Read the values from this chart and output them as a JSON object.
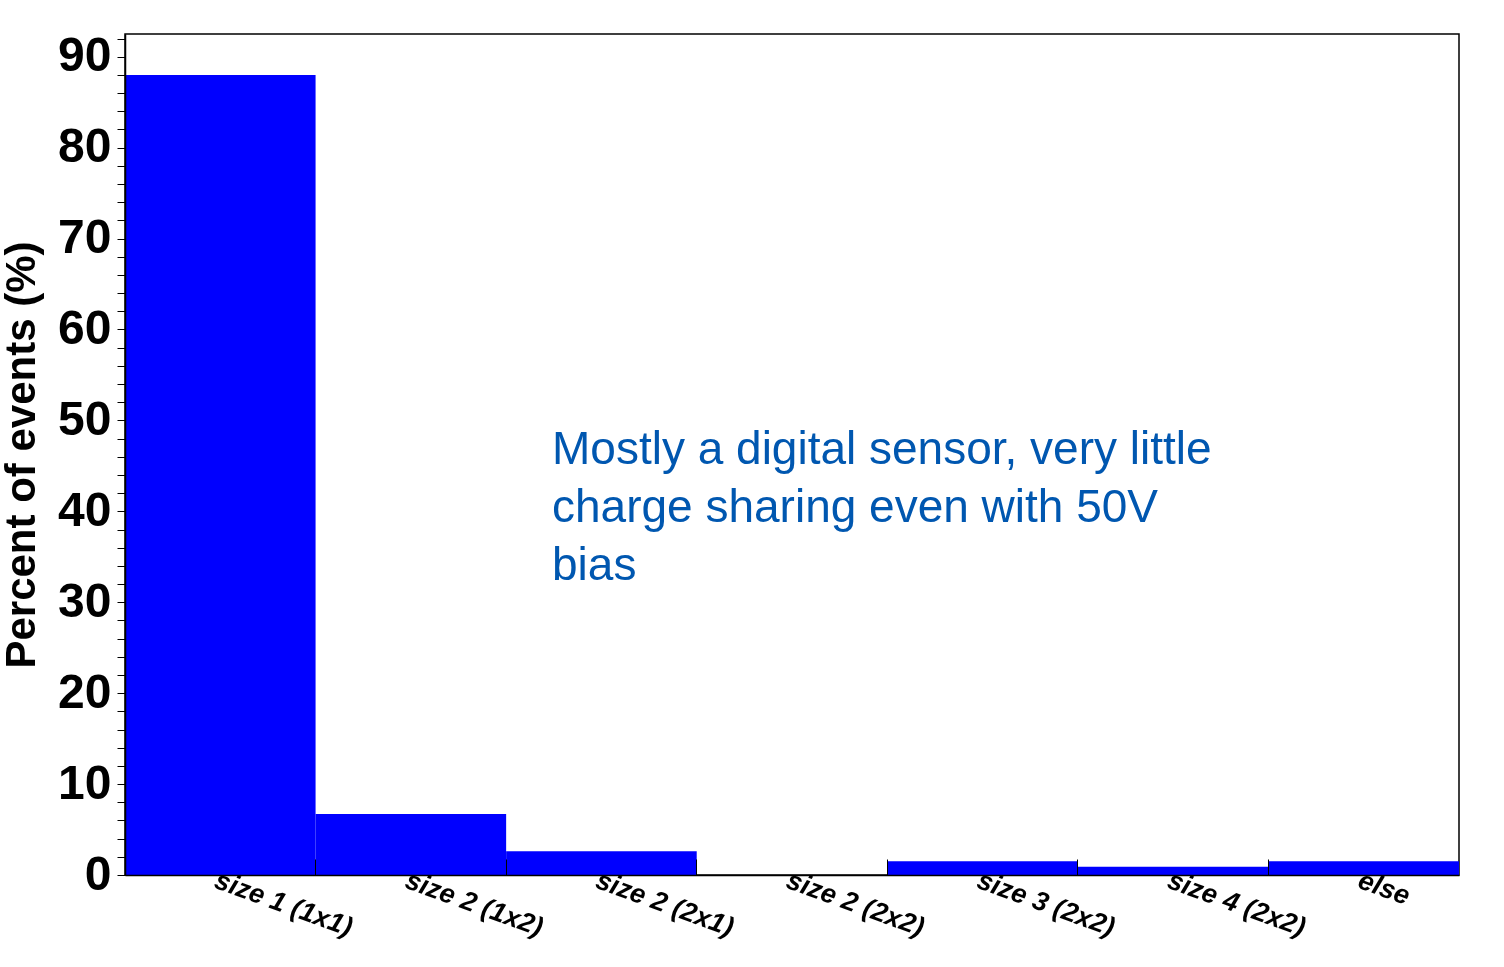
{
  "chart_data": {
    "type": "bar",
    "ylabel": "Percent of events (%)",
    "categories": [
      "size 1 (1x1)",
      "size 2 (1x2)",
      "size 2 (2x1)",
      "size 2 (2x2)",
      "size 3 (2x2)",
      "size 4 (2x2)",
      "else"
    ],
    "values": [
      88.0,
      6.7,
      2.6,
      0,
      1.5,
      0.9,
      1.5
    ],
    "color": "#0000ff",
    "ylim": [
      0,
      92.5
    ],
    "yticks": [
      0,
      {
        "value": 2,
        "label": null
      },
      {
        "value": 4,
        "label": null
      },
      {
        "value": 6,
        "label": null
      },
      {
        "value": 8,
        "label": null
      },
      10,
      {
        "value": 12,
        "label": null
      },
      {
        "value": 14,
        "label": null
      },
      {
        "value": 16,
        "label": null
      },
      {
        "value": 18,
        "label": null
      },
      20,
      {
        "value": 22,
        "label": null
      },
      {
        "value": 24,
        "label": null
      },
      {
        "value": 26,
        "label": null
      },
      {
        "value": 28,
        "label": null
      },
      30,
      {
        "value": 32,
        "label": null
      },
      {
        "value": 34,
        "label": null
      },
      {
        "value": 36,
        "label": null
      },
      {
        "value": 38,
        "label": null
      },
      40,
      {
        "value": 42,
        "label": null
      },
      {
        "value": 44,
        "label": null
      },
      {
        "value": 46,
        "label": null
      },
      {
        "value": 48,
        "label": null
      },
      50,
      {
        "value": 52,
        "label": null
      },
      {
        "value": 54,
        "label": null
      },
      {
        "value": 56,
        "label": null
      },
      {
        "value": 58,
        "label": null
      },
      60,
      {
        "value": 62,
        "label": null
      },
      {
        "value": 64,
        "label": null
      },
      {
        "value": 66,
        "label": null
      },
      {
        "value": 68,
        "label": null
      },
      70,
      {
        "value": 72,
        "label": null
      },
      {
        "value": 74,
        "label": null
      },
      {
        "value": 76,
        "label": null
      },
      {
        "value": 78,
        "label": null
      },
      80,
      {
        "value": 82,
        "label": null
      },
      {
        "value": 84,
        "label": null
      },
      {
        "value": 86,
        "label": null
      },
      {
        "value": 88,
        "label": null
      },
      90,
      {
        "value": 92,
        "label": null
      }
    ],
    "annotations": [
      "Mostly a digital sensor, very little charge sharing even with 50V bias"
    ],
    "grid": false
  }
}
